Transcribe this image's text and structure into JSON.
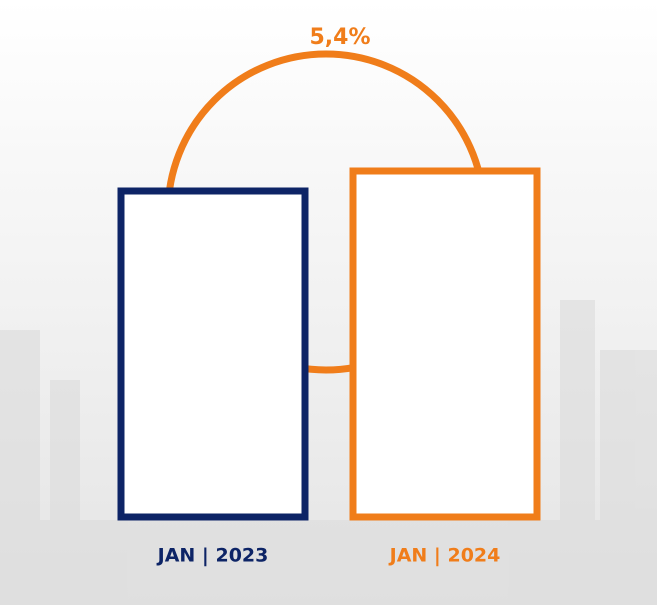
{
  "annotation": "5,4%",
  "bars": [
    {
      "label": "JAN | 2023",
      "color": "#0d2466"
    },
    {
      "label": "JAN | 2024",
      "color": "#f07d1a"
    }
  ]
}
